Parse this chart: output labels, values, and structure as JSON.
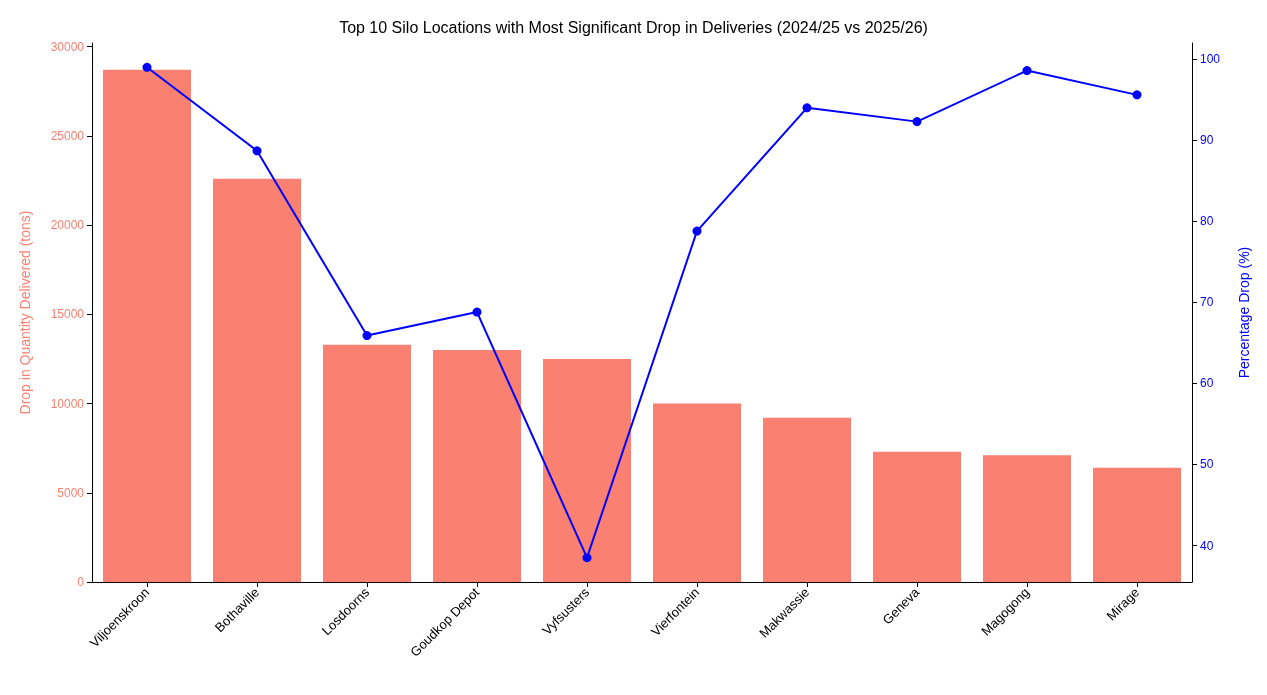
{
  "chart_data": {
    "type": "bar",
    "title": "Top 10 Silo Locations with Most Significant Drop in Deliveries (2024/25 vs 2025/26)",
    "categories": [
      "Viljoenskroon",
      "Bothaville",
      "Losdoorns",
      "Goudkop Depot",
      "Vyfsusters",
      "Vierfontein",
      "Makwassie",
      "Geneva",
      "Magogong",
      "Mirage"
    ],
    "series": [
      {
        "color": "#fa8072",
        "values": [
          28700,
          22600,
          13300,
          13000,
          12500,
          10000,
          9200,
          7300,
          7100,
          6400
        ]
      },
      {
        "type": "line",
        "axis": "y2",
        "color": "#0000ff",
        "marker": "circle",
        "line_style": "solid",
        "values": [
          99.0,
          88.7,
          65.9,
          68.8,
          38.5,
          78.8,
          94.0,
          92.3,
          98.6,
          95.6
        ]
      }
    ],
    "ylabel": "Drop in Quantity Delivered (tons)",
    "y2label": "Percentage Drop (%)",
    "ylim": [
      0,
      30200
    ],
    "yticks": [
      0,
      5000,
      10000,
      15000,
      20000,
      25000,
      30000
    ],
    "y2lim": [
      35.5,
      102
    ],
    "y2ticks": [
      40,
      50,
      60,
      70,
      80,
      90,
      100
    ],
    "grid": false
  }
}
